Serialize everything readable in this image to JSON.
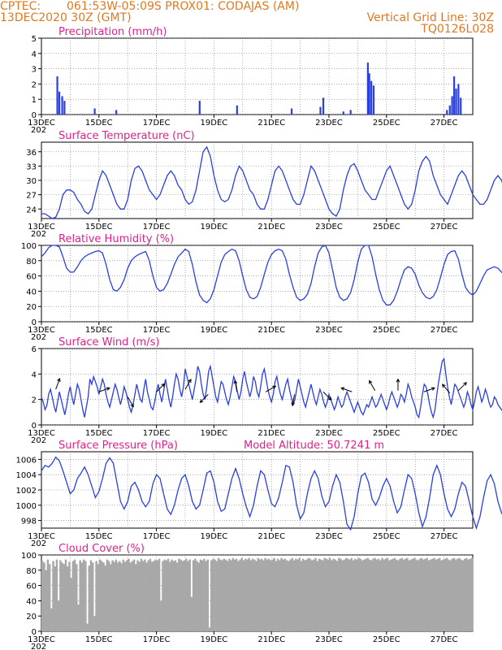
{
  "header": {
    "source": "CPTEC:",
    "location": "061:53W-05:09S   PROX01: CODAJAS (AM)",
    "init": "13DEC2020 30Z (GMT)",
    "grid_note": "Vertical Grid Line: 30Z",
    "code": "TQ0126L028"
  },
  "colors": {
    "header": "#e07820",
    "title": "#e0208c",
    "line": "#2a3fe0",
    "bar": "#2a3fe0",
    "cloud": "#a8a8a8"
  },
  "x_axis": {
    "tick_labels": [
      "13DEC",
      "15DEC",
      "17DEC",
      "19DEC",
      "21DEC",
      "23DEC",
      "25DEC",
      "27DEC"
    ],
    "year_label": "202",
    "days": 15
  },
  "chart_data": [
    {
      "id": "precip",
      "type": "bar",
      "title": "Precipitation (mm/h)",
      "ylim": [
        0,
        5
      ],
      "yticks": [
        "0",
        "1",
        "2",
        "3",
        "4",
        "5"
      ],
      "x_units": "days since 13DEC",
      "x": [
        0.55,
        0.62,
        0.72,
        0.8,
        1.85,
        2.6,
        5.5,
        6.8,
        8.7,
        9.7,
        9.8,
        10.5,
        10.75,
        11.35,
        11.4,
        11.47,
        11.55,
        14.1,
        14.2,
        14.28,
        14.35,
        14.42,
        14.5,
        14.58
      ],
      "values": [
        2.5,
        1.5,
        1.2,
        0.9,
        0.4,
        0.3,
        0.9,
        0.6,
        0.4,
        0.5,
        1.1,
        0.2,
        0.3,
        3.4,
        2.7,
        2.2,
        1.9,
        0.3,
        0.6,
        1.2,
        2.5,
        1.7,
        2.0,
        1.1
      ]
    },
    {
      "id": "temp",
      "type": "line",
      "title": "Surface Temperature (nC)",
      "ylim": [
        22,
        38
      ],
      "yticks": [
        "24",
        "27",
        "30",
        "33",
        "36"
      ],
      "ytick_values": [
        24,
        27,
        30,
        33,
        36
      ],
      "x_step_days": 0.125,
      "values": [
        23,
        23,
        22.5,
        22,
        22.3,
        24,
        27,
        28,
        28,
        27.5,
        26,
        25,
        23.5,
        23,
        24,
        27,
        30,
        32,
        31,
        29,
        27,
        25,
        24,
        24,
        26,
        30,
        32.5,
        33,
        32,
        30,
        28,
        27,
        26,
        27,
        29,
        31,
        32,
        31,
        29,
        28,
        26,
        25,
        25.5,
        28,
        32,
        36,
        37,
        35,
        31,
        28,
        26,
        25.5,
        26,
        28,
        31,
        33,
        32,
        30,
        28,
        27,
        25,
        24,
        24,
        26,
        29,
        32,
        33,
        32,
        30,
        28,
        26,
        25,
        25,
        27,
        30,
        33,
        32,
        30,
        28,
        26,
        24,
        23,
        22.5,
        24,
        28,
        31,
        33,
        33.5,
        32,
        30,
        28,
        27,
        26,
        26,
        28,
        30,
        32,
        33,
        31,
        29,
        27,
        25,
        24,
        25,
        28,
        32,
        34,
        35,
        34,
        31,
        29,
        27,
        26,
        25,
        27,
        29,
        31,
        32,
        31,
        29,
        27,
        26,
        25,
        25,
        26,
        28,
        30,
        31,
        30,
        28,
        27,
        26,
        26,
        28,
        30,
        33,
        34,
        33,
        31,
        29,
        28,
        26,
        25,
        26,
        28,
        31,
        34,
        35,
        34,
        32,
        30,
        28,
        27,
        27,
        28,
        29,
        29,
        30,
        30,
        29,
        29,
        28,
        27.5
      ]
    },
    {
      "id": "rh",
      "type": "line",
      "title": "Relative Humidity (%)",
      "ylim": [
        0,
        100
      ],
      "yticks": [
        "0",
        "20",
        "40",
        "60",
        "80",
        "100"
      ],
      "ytick_values": [
        0,
        20,
        40,
        60,
        80,
        100
      ],
      "x_step_days": 0.125,
      "values": [
        85,
        90,
        97,
        100,
        100,
        98,
        85,
        70,
        65,
        65,
        72,
        80,
        85,
        88,
        90,
        92,
        93,
        90,
        75,
        55,
        42,
        40,
        45,
        55,
        70,
        80,
        85,
        88,
        90,
        92,
        80,
        60,
        45,
        40,
        42,
        50,
        62,
        75,
        85,
        90,
        95,
        92,
        75,
        52,
        35,
        28,
        25,
        30,
        42,
        60,
        78,
        88,
        92,
        95,
        93,
        80,
        60,
        42,
        32,
        30,
        33,
        45,
        62,
        78,
        88,
        93,
        95,
        93,
        82,
        62,
        45,
        32,
        28,
        30,
        36,
        50,
        72,
        90,
        98,
        100,
        90,
        68,
        45,
        32,
        28,
        30,
        38,
        55,
        78,
        95,
        100,
        100,
        85,
        62,
        42,
        28,
        22,
        22,
        28,
        40,
        55,
        68,
        72,
        70,
        62,
        48,
        38,
        32,
        30,
        33,
        42,
        58,
        75,
        88,
        92,
        93,
        82,
        62,
        45,
        38,
        35,
        40,
        50,
        60,
        68,
        70,
        72,
        70,
        65,
        60,
        55,
        50,
        48,
        52,
        62,
        75,
        86,
        90,
        92,
        85,
        70,
        52,
        40,
        35,
        38,
        45,
        55,
        62,
        65,
        62,
        55,
        45,
        35,
        30,
        28,
        30,
        38,
        52,
        70,
        85,
        88,
        90,
        88,
        78,
        60,
        50,
        52,
        62,
        75,
        82,
        85,
        82
      ]
    },
    {
      "id": "wind",
      "type": "line",
      "title": "Surface Wind (m/s)",
      "ylim": [
        0,
        6
      ],
      "yticks": [
        "0",
        "2",
        "4",
        "6"
      ],
      "ytick_values": [
        0,
        2,
        4,
        6
      ],
      "x_step_days": 0.0625,
      "values": [
        2.2,
        1.8,
        1.2,
        1.5,
        2.4,
        2.8,
        2.2,
        1.5,
        1.0,
        1.8,
        2.6,
        2.0,
        1.4,
        0.8,
        1.5,
        2.4,
        3.0,
        2.2,
        1.6,
        2.4,
        3.2,
        2.8,
        2.0,
        1.2,
        0.6,
        1.4,
        2.2,
        3.6,
        3.2,
        3.8,
        3.4,
        3.0,
        2.4,
        3.0,
        3.6,
        3.2,
        2.4,
        1.8,
        1.4,
        2.0,
        2.6,
        3.2,
        2.8,
        2.2,
        1.6,
        2.2,
        3.0,
        2.6,
        2.0,
        1.4,
        1.0,
        1.6,
        2.4,
        3.2,
        2.6,
        2.0,
        1.8,
        2.8,
        3.6,
        2.6,
        2.0,
        1.4,
        1.2,
        1.8,
        2.6,
        3.2,
        2.4,
        1.8,
        2.6,
        3.6,
        2.8,
        2.0,
        1.4,
        2.2,
        3.2,
        4.0,
        3.6,
        2.8,
        2.2,
        3.0,
        4.4,
        3.8,
        3.2,
        2.6,
        2.0,
        2.8,
        3.6,
        4.6,
        4.2,
        3.2,
        2.4,
        2.0,
        3.0,
        4.2,
        4.6,
        3.8,
        3.0,
        2.2,
        1.8,
        2.6,
        3.4,
        3.2,
        2.6,
        2.0,
        1.6,
        2.2,
        3.0,
        3.8,
        3.4,
        2.6,
        2.0,
        2.6,
        3.6,
        4.2,
        3.4,
        2.8,
        2.2,
        2.8,
        3.8,
        3.4,
        2.6,
        2.2,
        3.0,
        4.0,
        4.4,
        3.6,
        2.8,
        2.2,
        1.8,
        2.4,
        3.4,
        3.8,
        3.0,
        2.4,
        2.0,
        2.6,
        3.2,
        3.6,
        2.8,
        2.2,
        1.6,
        2.0,
        2.8,
        3.6,
        3.0,
        2.4,
        1.8,
        1.4,
        2.0,
        2.6,
        3.2,
        2.6,
        2.0,
        1.6,
        2.2,
        2.8,
        2.4,
        1.8,
        1.4,
        1.8,
        2.4,
        2.0,
        1.6,
        1.2,
        1.6,
        2.2,
        1.8,
        1.4,
        1.6,
        2.2,
        2.6,
        2.2,
        1.8,
        1.4,
        1.0,
        1.4,
        1.8,
        1.4,
        1.0,
        0.8,
        1.2,
        1.6,
        1.4,
        1.8,
        2.2,
        1.8,
        1.4,
        1.6,
        2.0,
        2.4,
        2.0,
        1.6,
        1.2,
        1.6,
        2.2,
        2.6,
        2.2,
        1.8,
        1.4,
        1.8,
        2.4,
        2.2,
        1.8,
        2.4,
        3.2,
        2.8,
        2.2,
        1.8,
        1.4,
        0.8,
        0.6,
        1.4,
        2.4,
        3.2,
        3.0,
        2.4,
        1.6,
        1.0,
        0.6,
        1.2,
        2.4,
        3.4,
        4.2,
        5.0,
        5.2,
        4.0,
        3.0,
        2.2,
        1.6,
        2.4,
        3.2,
        3.0,
        2.6,
        2.2,
        1.8,
        1.4,
        1.8,
        2.6,
        2.2,
        1.6,
        1.2,
        1.8,
        2.6,
        3.0,
        2.4,
        1.8,
        2.2,
        2.8,
        2.4,
        1.8,
        1.4,
        1.6,
        2.2,
        2.0,
        1.6,
        1.4,
        1.2,
        1.0,
        1.2,
        1.6,
        1.4,
        1.0
      ]
    },
    {
      "id": "pressure",
      "type": "line",
      "title": "Surface Pressure (hPa)",
      "annotation": "Model Altitude: 50.7241 m",
      "ylim": [
        997,
        1007
      ],
      "yticks": [
        "998",
        "1000",
        "1002",
        "1004",
        "1006"
      ],
      "ytick_values": [
        998,
        1000,
        1002,
        1004,
        1006
      ],
      "x_step_days": 0.125,
      "values": [
        1004.5,
        1005.2,
        1005.0,
        1005.5,
        1006.3,
        1005.8,
        1004.5,
        1003.0,
        1001.5,
        1002.0,
        1003.5,
        1004.2,
        1005.0,
        1004.0,
        1002.5,
        1001.0,
        1001.8,
        1003.5,
        1005.5,
        1006.2,
        1005.5,
        1003.0,
        1000.5,
        999.5,
        1000.5,
        1002.5,
        1003.0,
        1002.0,
        1000.5,
        999.8,
        1000.5,
        1002.8,
        1004.0,
        1003.5,
        1001.5,
        999.5,
        998.8,
        1000.0,
        1002.0,
        1003.5,
        1004.0,
        1002.5,
        1000.5,
        999.5,
        1000.0,
        1002.0,
        1004.2,
        1004.5,
        1003.0,
        1000.5,
        999.2,
        999.5,
        1001.5,
        1003.5,
        1004.8,
        1003.5,
        1001.5,
        999.8,
        998.5,
        1000.0,
        1002.5,
        1004.5,
        1004.0,
        1002.0,
        1000.2,
        999.8,
        1001.0,
        1003.0,
        1005.2,
        1005.0,
        1003.0,
        1000.0,
        998.2,
        999.0,
        1001.5,
        1003.5,
        1004.5,
        1003.5,
        1001.2,
        999.8,
        1000.5,
        1002.5,
        1004.0,
        1003.0,
        1000.5,
        997.5,
        996.8,
        998.5,
        1001.5,
        1003.8,
        1004.2,
        1003.0,
        1000.8,
        1000.0,
        1001.0,
        1002.5,
        1003.5,
        1002.5,
        1000.5,
        999.0,
        999.8,
        1002.0,
        1004.0,
        1003.5,
        1001.5,
        999.0,
        997.2,
        998.5,
        1001.0,
        1004.0,
        1005.2,
        1004.0,
        1001.5,
        999.5,
        998.5,
        999.5,
        1001.5,
        1003.0,
        1002.5,
        1000.5,
        998.5,
        997.0,
        998.5,
        1001.0,
        1003.2,
        1004.0,
        1002.8,
        1000.5,
        999.0,
        998.2,
        999.5,
        1002.0,
        1003.8,
        1003.2,
        1001.0,
        999.2,
        998.5,
        999.5,
        1001.5,
        1003.8,
        1004.5,
        1003.0,
        1000.0,
        997.5,
        996.8,
        998.5,
        1001.5,
        1003.2,
        1002.8,
        1000.5,
        998.5,
        998.2,
        999.8,
        1002.0,
        1003.5,
        1003.0,
        1000.8,
        998.5,
        997.2,
        997.5,
        999.5,
        1001.8,
        1003.5,
        1003.5,
        1002.0,
        999.8,
        998.5,
        999.0,
        999.5,
        1000.0
      ]
    },
    {
      "id": "cloud",
      "type": "area",
      "title": "Cloud Cover (%)",
      "ylim": [
        0,
        100
      ],
      "yticks": [
        "0",
        "20",
        "40",
        "60",
        "80",
        "100"
      ],
      "ytick_values": [
        0,
        20,
        40,
        60,
        80,
        100
      ],
      "x_step_days": 0.0625,
      "values": [
        92,
        90,
        80,
        94,
        88,
        30,
        92,
        85,
        94,
        40,
        93,
        90,
        88,
        94,
        85,
        91,
        70,
        92,
        94,
        88,
        35,
        93,
        90,
        94,
        92,
        10,
        86,
        93,
        90,
        20,
        92,
        88,
        94,
        92,
        90,
        86,
        94,
        92,
        88,
        93,
        91,
        94,
        90,
        92,
        89,
        94,
        91,
        93,
        95,
        90,
        92,
        94,
        88,
        93,
        91,
        95,
        92,
        94,
        90,
        93,
        95,
        91,
        92,
        94,
        93,
        95,
        40,
        92,
        94,
        93,
        95,
        91,
        94,
        92,
        93,
        90,
        95,
        94,
        92,
        93,
        95,
        92,
        94,
        45,
        93,
        95,
        92,
        90,
        94,
        93,
        95,
        92,
        94,
        5,
        93,
        95,
        94,
        92,
        96,
        94,
        93,
        95,
        94,
        92,
        95,
        93,
        96,
        94,
        95,
        92,
        94,
        96,
        93,
        95,
        94,
        96,
        93,
        95,
        94,
        92,
        96,
        94,
        95,
        93,
        96,
        94,
        95,
        93,
        94,
        96,
        92,
        95,
        93,
        96,
        94,
        95,
        93,
        92,
        94,
        96,
        93,
        95,
        94,
        96,
        92,
        95,
        93,
        94,
        96,
        95,
        93,
        94,
        96,
        92,
        95,
        94,
        93,
        96,
        95,
        94,
        96,
        93,
        95,
        94,
        92,
        96,
        95,
        93,
        94,
        96,
        95,
        94,
        96,
        93,
        95,
        94,
        96,
        95,
        93,
        94,
        95,
        96,
        94,
        93,
        95,
        96,
        94,
        95,
        93,
        96,
        94,
        95,
        96,
        93,
        94,
        95,
        96,
        94,
        93,
        95,
        96,
        94,
        95,
        96,
        93,
        94,
        95,
        96,
        94,
        93,
        95,
        96,
        94,
        95,
        96,
        93,
        94,
        95,
        96,
        94,
        95,
        96,
        93,
        94,
        95,
        96,
        94,
        93,
        95,
        96,
        94,
        95,
        96,
        94,
        93,
        95,
        96,
        94,
        95,
        96
      ]
    },
    {
      "id": "wind_vectors",
      "type": "scatter",
      "x_units": "days since 13DEC",
      "x": [
        0.5,
        2.0,
        3.0,
        4.0,
        5.0,
        5.8,
        6.8,
        7.8,
        8.8,
        9.8,
        10.8,
        11.6,
        12.4,
        13.3,
        14.2,
        14.5
      ],
      "y": [
        2.8,
        2.6,
        2.2,
        2.6,
        2.8,
        2.4,
        2.6,
        2.6,
        2.4,
        2.6,
        2.6,
        2.7,
        2.7,
        2.6,
        2.5,
        2.7
      ]
    }
  ]
}
